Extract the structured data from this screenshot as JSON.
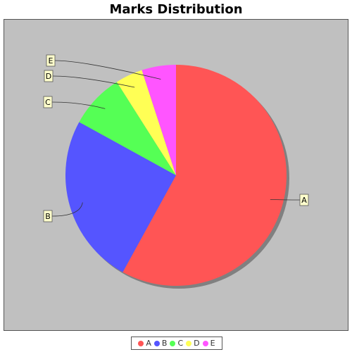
{
  "chart_data": {
    "type": "pie",
    "title": "Marks Distribution",
    "categories": [
      "A",
      "B",
      "C",
      "D",
      "E"
    ],
    "values": [
      58,
      25,
      8,
      4,
      5
    ],
    "colors": [
      "#ff5555",
      "#5555ff",
      "#55ff55",
      "#ffff55",
      "#ff55ff"
    ],
    "legend_position": "bottom",
    "plot_background": "#c0c0c0"
  }
}
